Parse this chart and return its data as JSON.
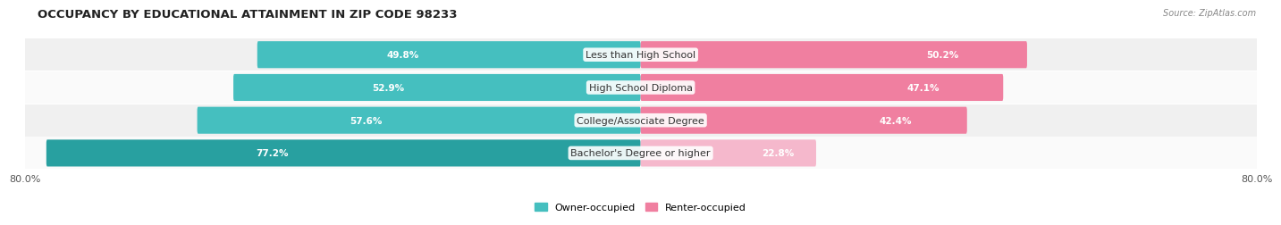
{
  "title": "OCCUPANCY BY EDUCATIONAL ATTAINMENT IN ZIP CODE 98233",
  "source": "Source: ZipAtlas.com",
  "categories": [
    "Less than High School",
    "High School Diploma",
    "College/Associate Degree",
    "Bachelor's Degree or higher"
  ],
  "owner_values": [
    49.8,
    52.9,
    57.6,
    77.2
  ],
  "renter_values": [
    50.2,
    47.1,
    42.4,
    22.8
  ],
  "owner_color": "#45bfbf",
  "renter_color": "#f07fa0",
  "owner_color_dark": "#28a0a0",
  "renter_color_light": "#f5b8cc",
  "row_bg_even": "#f0f0f0",
  "row_bg_odd": "#fafafa",
  "owner_label": "Owner-occupied",
  "renter_label": "Renter-occupied",
  "xlim": 80.0,
  "x_tick_left": "80.0%",
  "x_tick_right": "80.0%",
  "title_fontsize": 9.5,
  "cat_fontsize": 8,
  "value_fontsize": 7.5,
  "legend_fontsize": 8,
  "background_color": "#ffffff"
}
